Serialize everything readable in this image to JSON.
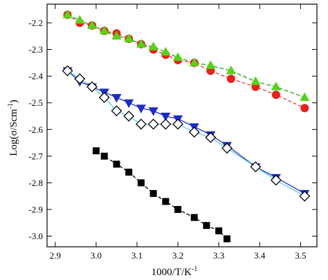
{
  "chart_data": {
    "type": "scatter",
    "xlabel": "1000/T/K",
    "xlabel_sup": "-1",
    "ylabel": "Log(σ/Scm",
    "ylabel_sup": "-1",
    "ylabel_close": ")",
    "xlim": [
      2.88,
      3.54
    ],
    "ylim": [
      -3.04,
      -2.13
    ],
    "x_ticks": [
      2.9,
      3.0,
      3.1,
      3.2,
      3.3,
      3.4,
      3.5
    ],
    "x_tick_labels": [
      "2.9",
      "3.0",
      "3.1",
      "3.2",
      "3.3",
      "3.4",
      "3.5"
    ],
    "y_ticks": [
      -2.2,
      -2.3,
      -2.4,
      -2.5,
      -2.6,
      -2.7,
      -2.8,
      -2.9,
      -3.0
    ],
    "y_tick_labels": [
      "-2.2",
      "-2.3",
      "-2.4",
      "-2.5",
      "-2.6",
      "-2.7",
      "-2.8",
      "-2.9",
      "-3.0"
    ],
    "grid": false,
    "series": [
      {
        "marker": "circle",
        "color": "#e8211d",
        "line_color": "#d8403c",
        "dash": "5,3",
        "x": [
          2.93,
          2.96,
          2.99,
          3.02,
          3.05,
          3.08,
          3.11,
          3.14,
          3.17,
          3.2,
          3.24,
          3.28,
          3.33,
          3.39,
          3.44,
          3.51
        ],
        "y": [
          -2.17,
          -2.2,
          -2.21,
          -2.23,
          -2.24,
          -2.26,
          -2.28,
          -2.3,
          -2.32,
          -2.34,
          -2.35,
          -2.38,
          -2.41,
          -2.44,
          -2.47,
          -2.52
        ]
      },
      {
        "marker": "triangle-up",
        "color": "#55d316",
        "line_color": "#2f9e27",
        "dash": "6,3",
        "x": [
          2.93,
          2.96,
          2.99,
          3.02,
          3.05,
          3.08,
          3.11,
          3.14,
          3.17,
          3.2,
          3.24,
          3.28,
          3.33,
          3.39,
          3.44,
          3.51
        ],
        "y": [
          -2.17,
          -2.19,
          -2.21,
          -2.23,
          -2.25,
          -2.26,
          -2.28,
          -2.29,
          -2.31,
          -2.33,
          -2.35,
          -2.36,
          -2.38,
          -2.42,
          -2.44,
          -2.48
        ]
      },
      {
        "marker": "triangle-down",
        "color": "#1d2cc9",
        "line_color": "#1d2cc9",
        "dash": "none",
        "x": [
          2.93,
          2.96,
          2.99,
          3.02,
          3.05,
          3.08,
          3.11,
          3.14,
          3.17,
          3.2,
          3.24,
          3.28,
          3.32,
          3.39,
          3.44,
          3.51
        ],
        "y": [
          -2.38,
          -2.42,
          -2.44,
          -2.46,
          -2.48,
          -2.5,
          -2.52,
          -2.53,
          -2.55,
          -2.56,
          -2.59,
          -2.62,
          -2.66,
          -2.74,
          -2.78,
          -2.84
        ]
      },
      {
        "marker": "diamond-open",
        "color": "#ffffff",
        "stroke": "#000000",
        "line_color": "#5fc8e8",
        "dash": "none",
        "x": [
          2.93,
          2.96,
          2.99,
          3.02,
          3.05,
          3.08,
          3.11,
          3.14,
          3.17,
          3.2,
          3.24,
          3.28,
          3.32,
          3.39,
          3.44,
          3.51
        ],
        "y": [
          -2.38,
          -2.41,
          -2.44,
          -2.48,
          -2.53,
          -2.55,
          -2.58,
          -2.58,
          -2.58,
          -2.58,
          -2.61,
          -2.63,
          -2.67,
          -2.74,
          -2.79,
          -2.85
        ]
      },
      {
        "marker": "square",
        "color": "#000000",
        "line_color": "#000000",
        "dash": "5,3",
        "x": [
          3.0,
          3.02,
          3.05,
          3.08,
          3.11,
          3.14,
          3.17,
          3.2,
          3.24,
          3.27,
          3.3,
          3.32
        ],
        "y": [
          -2.68,
          -2.7,
          -2.73,
          -2.76,
          -2.8,
          -2.84,
          -2.87,
          -2.9,
          -2.93,
          -2.96,
          -2.98,
          -3.01
        ]
      }
    ]
  }
}
